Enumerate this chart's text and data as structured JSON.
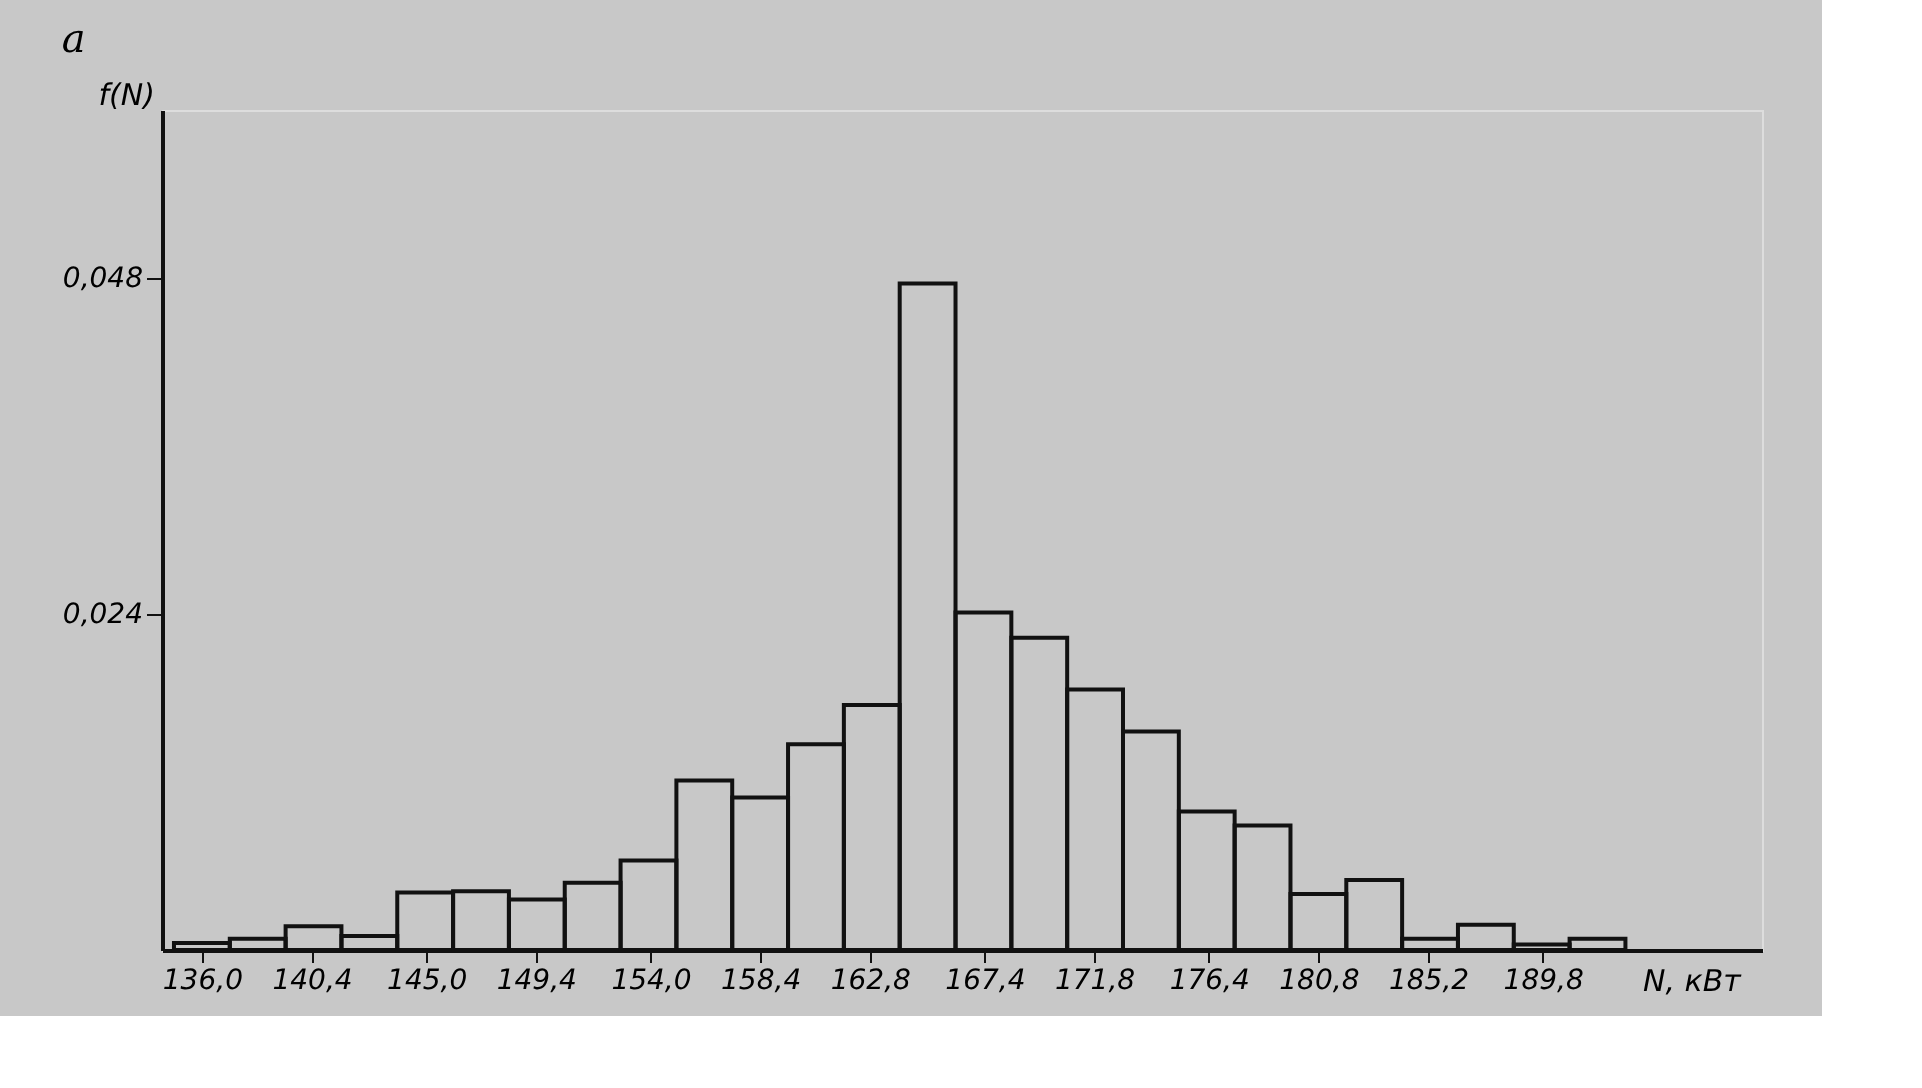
{
  "chart_data": {
    "type": "histogram",
    "title": "a",
    "xlabel": "N, кВт",
    "ylabel": "f(N)",
    "bins": [
      134.88,
      137.12,
      139.36,
      141.6,
      143.84,
      146.08,
      148.32,
      150.56,
      152.8,
      155.04,
      157.28,
      159.52,
      161.76,
      164.0,
      166.24,
      168.48,
      170.72,
      172.96,
      175.2,
      177.44,
      179.68,
      181.92,
      184.16,
      186.4,
      188.64,
      190.88,
      193.12
    ],
    "values": [
      0.0005,
      0.0008,
      0.0017,
      0.001,
      0.0041,
      0.0042,
      0.0036,
      0.0048,
      0.0064,
      0.0121,
      0.0109,
      0.0147,
      0.0175,
      0.0476,
      0.0241,
      0.0223,
      0.0186,
      0.0156,
      0.0099,
      0.0089,
      0.004,
      0.005,
      0.0008,
      0.0018,
      0.0004,
      0.0008
    ],
    "xlim": [
      134.4,
      198.6
    ],
    "ylim": [
      0,
      0.06
    ],
    "xticks": [
      {
        "value": 136.0,
        "label": "136,0"
      },
      {
        "value": 140.4,
        "label": "140,4"
      },
      {
        "value": 145.0,
        "label": "145,0"
      },
      {
        "value": 149.4,
        "label": "149,4"
      },
      {
        "value": 154.0,
        "label": "154,0"
      },
      {
        "value": 158.4,
        "label": "158,4"
      },
      {
        "value": 162.8,
        "label": "162,8"
      },
      {
        "value": 167.4,
        "label": "167,4"
      },
      {
        "value": 171.8,
        "label": "171,8"
      },
      {
        "value": 176.4,
        "label": "176,4"
      },
      {
        "value": 180.8,
        "label": "180,8"
      },
      {
        "value": 185.2,
        "label": "185,2"
      },
      {
        "value": 189.8,
        "label": "189,8"
      }
    ],
    "yticks": [
      {
        "value": 0.024,
        "label": "0,024"
      },
      {
        "value": 0.048,
        "label": "0,048"
      }
    ]
  }
}
